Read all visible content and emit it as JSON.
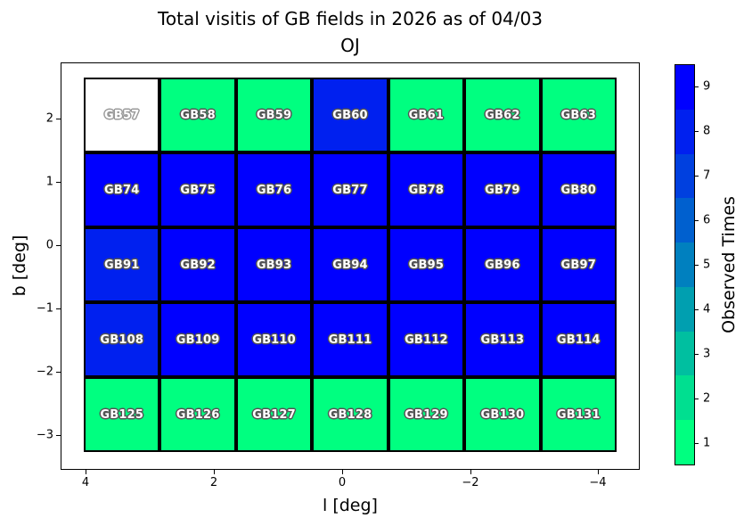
{
  "title": {
    "line1": "Total visitis of GB fields in 2026 as of 04/03",
    "line2": "OJ"
  },
  "axes": {
    "xlabel": "l [deg]",
    "ylabel": "b [deg]",
    "x_ticks": [
      "4",
      "2",
      "0",
      "−2",
      "−4"
    ],
    "y_ticks": [
      "2",
      "1",
      "0",
      "−1",
      "−2",
      "−3"
    ]
  },
  "colorbar": {
    "label": "Observed Times",
    "ticks": [
      "9",
      "8",
      "7",
      "6",
      "5",
      "4",
      "3",
      "2",
      "1"
    ],
    "segments": [
      {
        "value": 9,
        "color": "#0000FF"
      },
      {
        "value": 8,
        "color": "#0020EF"
      },
      {
        "value": 7,
        "color": "#0040DF"
      },
      {
        "value": 6,
        "color": "#0060CF"
      },
      {
        "value": 5,
        "color": "#0080BF"
      },
      {
        "value": 4,
        "color": "#009FB0"
      },
      {
        "value": 3,
        "color": "#00BFA0"
      },
      {
        "value": 2,
        "color": "#00DF90"
      },
      {
        "value": 1,
        "color": "#00FF80"
      }
    ]
  },
  "chart_data": {
    "type": "heatmap",
    "title": "Total visitis of GB fields in 2026 as of 04/03 OJ",
    "xlabel": "l [deg]",
    "ylabel": "b [deg]",
    "colorbar_label": "Observed Times",
    "x_tick_values": [
      4,
      2,
      0,
      -2,
      -4
    ],
    "y_tick_values": [
      2,
      1,
      0,
      -1,
      -2,
      -3
    ],
    "colormap": "green-to-blue (winter), 9 discrete levels, 1=#00FF80 to 9=#0000FF, 0/no-data=white",
    "value_colors": {
      "0": "#FFFFFF",
      "1": "#00FF80",
      "8": "#0020EF",
      "9": "#0000FF"
    },
    "rows": [
      {
        "fields": [
          "GB57",
          "GB58",
          "GB59",
          "GB60",
          "GB61",
          "GB62",
          "GB63"
        ],
        "values": [
          0,
          1,
          1,
          8,
          1,
          1,
          1
        ]
      },
      {
        "fields": [
          "GB74",
          "GB75",
          "GB76",
          "GB77",
          "GB78",
          "GB79",
          "GB80"
        ],
        "values": [
          9,
          9,
          9,
          9,
          9,
          9,
          9
        ]
      },
      {
        "fields": [
          "GB91",
          "GB92",
          "GB93",
          "GB94",
          "GB95",
          "GB96",
          "GB97"
        ],
        "values": [
          8,
          9,
          9,
          9,
          9,
          9,
          9
        ]
      },
      {
        "fields": [
          "GB108",
          "GB109",
          "GB110",
          "GB111",
          "GB112",
          "GB113",
          "GB114"
        ],
        "values": [
          8,
          9,
          9,
          9,
          9,
          9,
          9
        ]
      },
      {
        "fields": [
          "GB125",
          "GB126",
          "GB127",
          "GB128",
          "GB129",
          "GB130",
          "GB131"
        ],
        "values": [
          1,
          1,
          1,
          1,
          1,
          1,
          1
        ]
      }
    ]
  }
}
